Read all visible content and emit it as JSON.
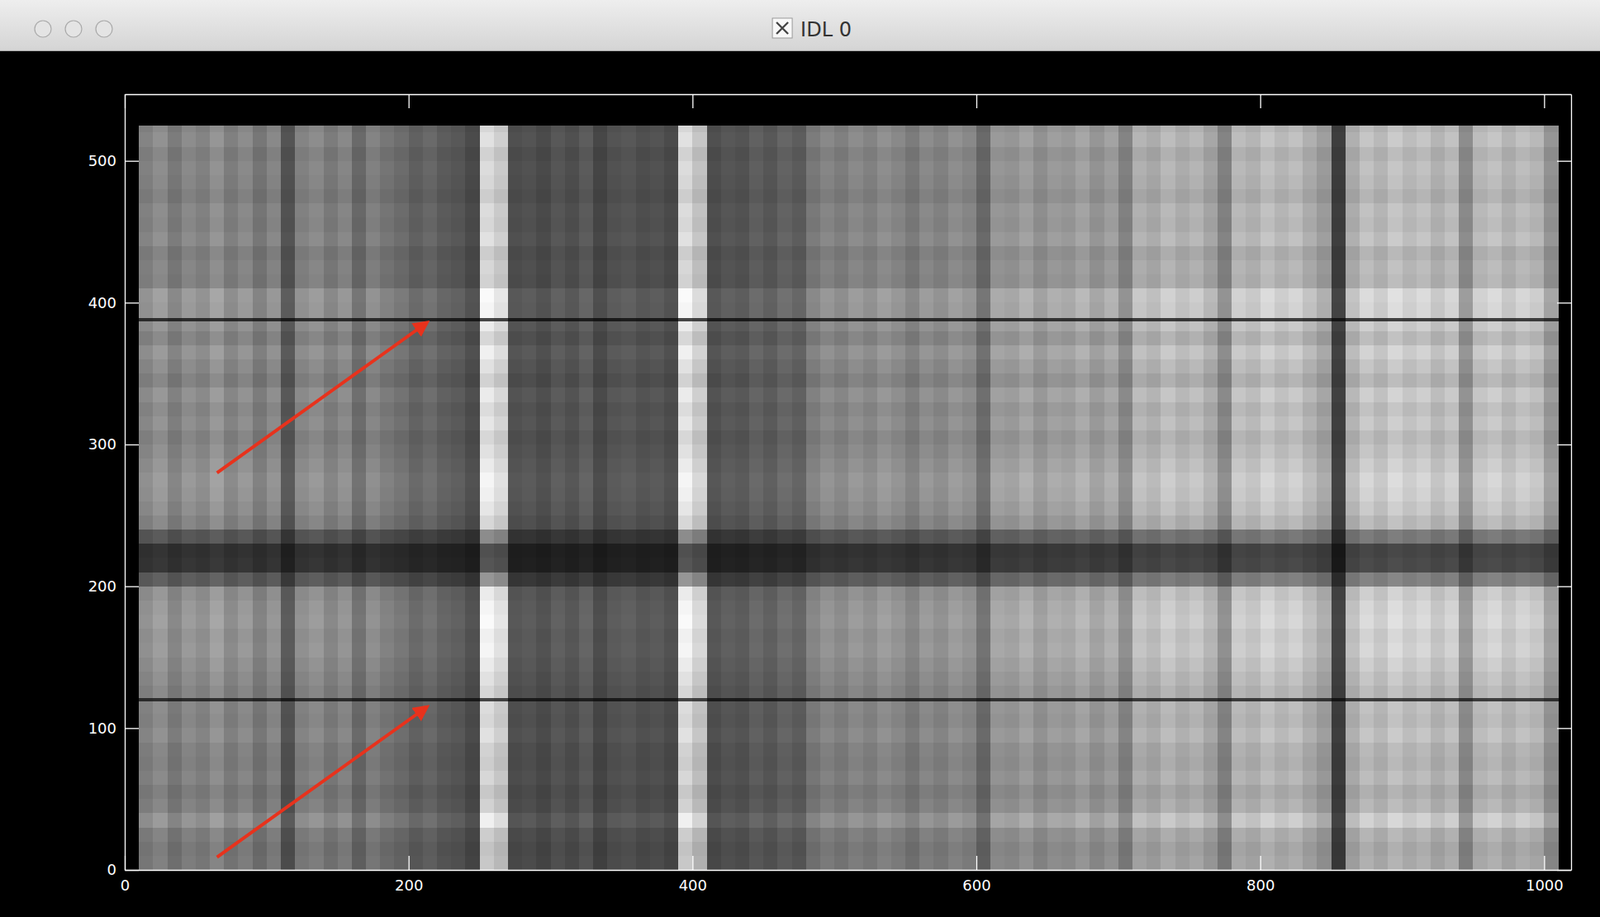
{
  "window_title": "IDL 0",
  "chart_data": {
    "type": "image",
    "xlim": [
      0,
      1019
    ],
    "xticks": [
      0,
      200,
      400,
      600,
      800,
      1000
    ],
    "ylim": [
      0,
      547
    ],
    "yticks": [
      0,
      100,
      200,
      300,
      400,
      500
    ],
    "zlim": [
      0,
      255
    ],
    "x_edges": [
      10,
      20,
      30,
      40,
      50,
      60,
      70,
      80,
      90,
      100,
      110,
      120,
      130,
      140,
      150,
      160,
      170,
      180,
      190,
      200,
      210,
      220,
      230,
      240,
      250,
      260,
      270,
      280,
      290,
      300,
      310,
      320,
      330,
      340,
      350,
      360,
      370,
      380,
      390,
      400,
      410,
      420,
      430,
      440,
      450,
      460,
      470,
      480,
      490,
      500,
      510,
      520,
      530,
      540,
      550,
      560,
      570,
      580,
      590,
      600,
      610,
      620,
      630,
      640,
      650,
      660,
      670,
      680,
      690,
      700,
      710,
      720,
      730,
      740,
      750,
      760,
      770,
      780,
      790,
      800,
      810,
      820,
      830,
      840,
      850,
      860,
      870,
      880,
      890,
      900,
      910,
      920,
      930,
      940,
      950,
      960,
      970,
      980,
      990,
      1000,
      1010
    ],
    "column_values": [
      150,
      165,
      140,
      160,
      150,
      170,
      145,
      160,
      135,
      155,
      95,
      150,
      160,
      140,
      155,
      120,
      150,
      135,
      125,
      110,
      120,
      105,
      100,
      85,
      255,
      235,
      90,
      95,
      85,
      100,
      90,
      105,
      80,
      95,
      100,
      90,
      95,
      85,
      255,
      225,
      90,
      100,
      95,
      110,
      100,
      115,
      105,
      140,
      155,
      145,
      160,
      150,
      165,
      155,
      140,
      160,
      150,
      165,
      155,
      120,
      175,
      170,
      185,
      165,
      180,
      175,
      190,
      170,
      185,
      150,
      205,
      195,
      215,
      200,
      210,
      190,
      150,
      215,
      205,
      225,
      210,
      220,
      200,
      180,
      70,
      200,
      225,
      210,
      230,
      215,
      225,
      205,
      220,
      160,
      215,
      225,
      205,
      220,
      210,
      170
    ],
    "y_edges": [
      0,
      10,
      20,
      30,
      40,
      50,
      60,
      70,
      80,
      90,
      100,
      110,
      119,
      121,
      130,
      140,
      150,
      160,
      170,
      180,
      190,
      200,
      210,
      220,
      230,
      240,
      250,
      260,
      270,
      280,
      290,
      300,
      310,
      320,
      330,
      340,
      350,
      360,
      370,
      380,
      387,
      389,
      400,
      410,
      420,
      430,
      440,
      450,
      460,
      470,
      480,
      490,
      500,
      510,
      520,
      525
    ],
    "row_values": [
      200,
      195,
      205,
      240,
      210,
      200,
      215,
      205,
      210,
      225,
      215,
      220,
      70,
      215,
      225,
      235,
      245,
      240,
      250,
      245,
      235,
      150,
      85,
      80,
      140,
      215,
      230,
      240,
      245,
      235,
      225,
      215,
      230,
      220,
      235,
      210,
      225,
      240,
      215,
      235,
      70,
      245,
      250,
      210,
      215,
      205,
      225,
      215,
      220,
      205,
      215,
      220,
      210,
      225,
      215
    ]
  }
}
